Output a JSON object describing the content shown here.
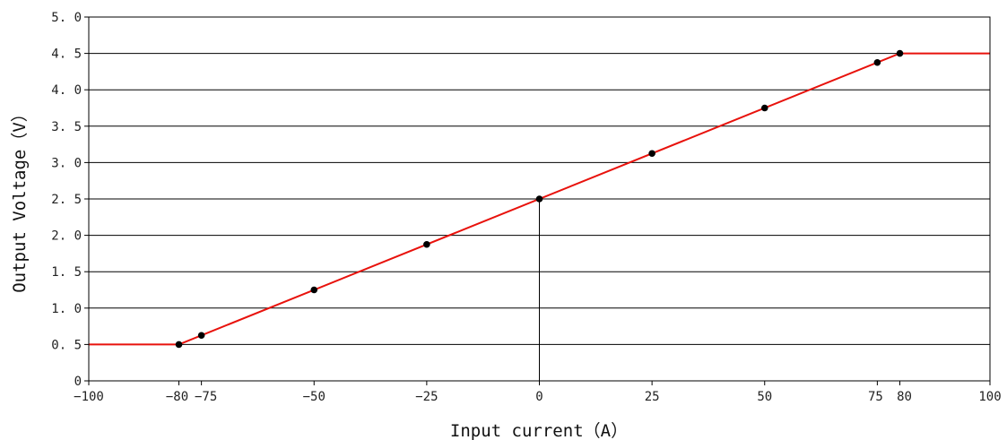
{
  "chart_data": {
    "type": "line",
    "title": "",
    "xlabel": "Input current（A）",
    "ylabel": "Output Voltage（V）",
    "xlim": [
      -100,
      100
    ],
    "ylim": [
      0,
      5
    ],
    "x_ticks": [
      -100,
      -80,
      -75,
      -50,
      -25,
      0,
      25,
      50,
      75,
      80,
      100
    ],
    "x_tick_labels": [
      "−100",
      "−80",
      "−75",
      "−50",
      "−25",
      "0",
      "25",
      "50",
      "75",
      "80",
      "100"
    ],
    "y_ticks": [
      0,
      0.5,
      1.0,
      1.5,
      2.0,
      2.5,
      3.0,
      3.5,
      4.0,
      4.5,
      5.0
    ],
    "y_tick_labels": [
      "0",
      "0. 5",
      "1. 0",
      "1. 5",
      "2. 0",
      "2. 5",
      "3. 0",
      "3. 5",
      "4. 0",
      "4. 5",
      "5. 0"
    ],
    "grid": "horizontal",
    "series": [
      {
        "x": [
          -100,
          -80,
          80,
          100
        ],
        "y": [
          0.5,
          0.5,
          4.5,
          4.5
        ],
        "color": "#e8120c",
        "style": "line"
      },
      {
        "x": [
          -80,
          -75,
          -50,
          -25,
          0,
          25,
          50,
          75,
          80
        ],
        "y": [
          0.5,
          0.625,
          1.25,
          1.875,
          2.5,
          3.125,
          3.75,
          4.375,
          4.5
        ],
        "color": "#000000",
        "style": "markers"
      }
    ],
    "reference_line": {
      "x": 0,
      "y_from": 0,
      "y_to": 2.5,
      "color": "#000000"
    }
  }
}
